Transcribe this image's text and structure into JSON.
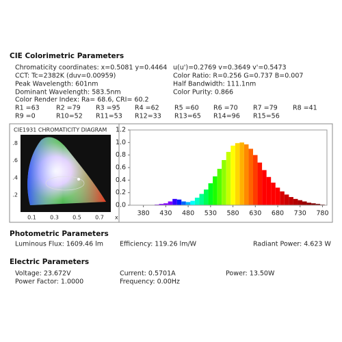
{
  "colorimetric": {
    "title": "CIE Colorimetric Parameters",
    "left": [
      "Chromaticity coordinates: x=0.5081 y=0.4464",
      "CCT: Tc=2382K (duv=0.00959)",
      "Peak Wavelength: 601nm",
      "Dominant Wavelength: 583.5nm"
    ],
    "right": [
      "u(u')=0.2769 v=0.3649 v'=0.5473",
      "Color Ratio: R=0.256  G=0.737  B=0.007",
      "Half Bandwidth: 111.1nm",
      "Color Purity: 0.866"
    ],
    "cri": "Color Render Index: Ra= 68.6, CRI= 60.2",
    "r_values": [
      "R1 =63",
      "R2 =79",
      "R3 =95",
      "R4 =62",
      "R5 =60",
      "R6 =70",
      "R7 =79",
      "R8 =41",
      "R9 =0",
      "R10=52",
      "R11=53",
      "R12=33",
      "R13=65",
      "R14=96",
      "R15=56"
    ]
  },
  "cie_diagram": {
    "title": "CIE1931 CHROMATICITY DIAGRAM",
    "x_label": "x",
    "xticks": [
      0.1,
      0.3,
      0.5,
      0.7
    ],
    "yticks": [
      {
        "value": 0.8,
        "label": ".8"
      },
      {
        "value": 0.6,
        "label": ".6"
      },
      {
        "value": 0.4,
        "label": ".4"
      },
      {
        "value": 0.2,
        "label": ".2"
      }
    ]
  },
  "chart_data": {
    "type": "bar",
    "x": [
      380,
      390,
      400,
      410,
      420,
      430,
      440,
      450,
      460,
      470,
      480,
      490,
      500,
      510,
      520,
      530,
      540,
      550,
      560,
      570,
      580,
      590,
      600,
      610,
      620,
      630,
      640,
      650,
      660,
      670,
      680,
      690,
      700,
      710,
      720,
      730,
      740,
      750,
      760,
      770,
      780
    ],
    "values": [
      0,
      0,
      0.005,
      0.01,
      0.02,
      0.03,
      0.06,
      0.1,
      0.09,
      0.06,
      0.05,
      0.07,
      0.12,
      0.18,
      0.25,
      0.35,
      0.46,
      0.58,
      0.72,
      0.85,
      0.95,
      0.99,
      1.0,
      0.97,
      0.9,
      0.8,
      0.68,
      0.56,
      0.45,
      0.36,
      0.28,
      0.22,
      0.17,
      0.13,
      0.1,
      0.08,
      0.06,
      0.04,
      0.03,
      0.02,
      0.01
    ],
    "xlim": [
      350,
      790
    ],
    "ylim": [
      0,
      1.2
    ],
    "xticks": [
      380,
      430,
      480,
      530,
      580,
      630,
      680,
      730,
      780
    ],
    "yticks": [
      {
        "value": 0,
        "label": "0.0"
      },
      0.2,
      0.4,
      0.6,
      0.8,
      {
        "value": 1,
        "label": "1.0"
      },
      1.2
    ]
  },
  "photometric": {
    "title": "Photometric Parameters",
    "items": [
      "Luminous Flux: 1609.46 lm",
      "Efficiency: 119.26 lm/W",
      "Radiant Power: 4.623 W"
    ]
  },
  "electric": {
    "title": "Electric Parameters",
    "items": [
      "Voltage: 23.672V",
      "Current: 0.5701A",
      "Power: 13.50W",
      "Power Factor: 1.0000",
      "Frequency: 0.00Hz"
    ]
  }
}
